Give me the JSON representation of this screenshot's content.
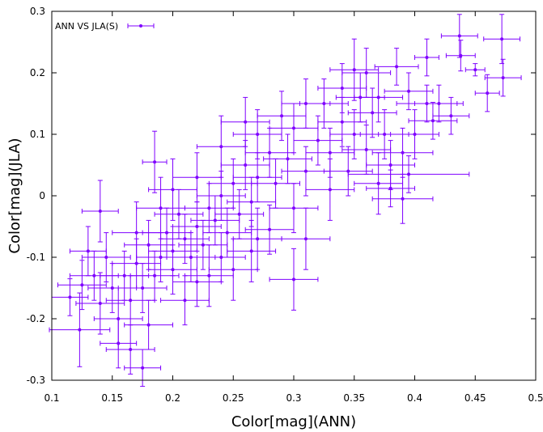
{
  "chart_data": {
    "type": "scatter",
    "xlabel": "Color[mag](ANN)",
    "ylabel": "Color[mag](JLA)",
    "xlim": [
      0.1,
      0.5
    ],
    "ylim": [
      -0.3,
      0.3
    ],
    "xticks": [
      "0.1",
      "0.15",
      "0.2",
      "0.25",
      "0.3",
      "0.35",
      "0.4",
      "0.45",
      "0.5"
    ],
    "yticks": [
      "-0.3",
      "-0.2",
      "-0.1",
      "0",
      "0.1",
      "0.2",
      "0.3"
    ],
    "grid": false,
    "legend_position": "top-left",
    "series": [
      {
        "name": "ANN VS JLA(S)",
        "color": "#7f00ff",
        "marker": "circle",
        "error_bars": "xy",
        "points": [
          {
            "x": 0.437,
            "y": 0.26,
            "xerr": 0.015,
            "yerr": 0.035
          },
          {
            "x": 0.472,
            "y": 0.255,
            "xerr": 0.015,
            "yerr": 0.04
          },
          {
            "x": 0.438,
            "y": 0.228,
            "xerr": 0.012,
            "yerr": 0.025
          },
          {
            "x": 0.45,
            "y": 0.205,
            "xerr": 0.008,
            "yerr": 0.01
          },
          {
            "x": 0.473,
            "y": 0.192,
            "xerr": 0.015,
            "yerr": 0.03
          },
          {
            "x": 0.46,
            "y": 0.167,
            "xerr": 0.01,
            "yerr": 0.03
          },
          {
            "x": 0.41,
            "y": 0.225,
            "xerr": 0.01,
            "yerr": 0.03
          },
          {
            "x": 0.385,
            "y": 0.21,
            "xerr": 0.018,
            "yerr": 0.03
          },
          {
            "x": 0.36,
            "y": 0.2,
            "xerr": 0.02,
            "yerr": 0.04
          },
          {
            "x": 0.35,
            "y": 0.205,
            "xerr": 0.02,
            "yerr": 0.05
          },
          {
            "x": 0.395,
            "y": 0.17,
            "xerr": 0.02,
            "yerr": 0.03
          },
          {
            "x": 0.41,
            "y": 0.15,
            "xerr": 0.025,
            "yerr": 0.03
          },
          {
            "x": 0.415,
            "y": 0.122,
            "xerr": 0.02,
            "yerr": 0.03
          },
          {
            "x": 0.4,
            "y": 0.1,
            "xerr": 0.02,
            "yerr": 0.04
          },
          {
            "x": 0.39,
            "y": 0.07,
            "xerr": 0.025,
            "yerr": 0.04
          },
          {
            "x": 0.38,
            "y": 0.05,
            "xerr": 0.02,
            "yerr": 0.04
          },
          {
            "x": 0.395,
            "y": 0.035,
            "xerr": 0.05,
            "yerr": 0.03
          },
          {
            "x": 0.38,
            "y": 0.012,
            "xerr": 0.02,
            "yerr": 0.03
          },
          {
            "x": 0.39,
            "y": -0.005,
            "xerr": 0.025,
            "yerr": 0.04
          },
          {
            "x": 0.37,
            "y": 0.02,
            "xerr": 0.02,
            "yerr": 0.05
          },
          {
            "x": 0.365,
            "y": 0.135,
            "xerr": 0.02,
            "yerr": 0.04
          },
          {
            "x": 0.355,
            "y": 0.16,
            "xerr": 0.02,
            "yerr": 0.04
          },
          {
            "x": 0.35,
            "y": 0.1,
            "xerr": 0.02,
            "yerr": 0.04
          },
          {
            "x": 0.34,
            "y": 0.12,
            "xerr": 0.02,
            "yerr": 0.04
          },
          {
            "x": 0.33,
            "y": 0.07,
            "xerr": 0.02,
            "yerr": 0.04
          },
          {
            "x": 0.325,
            "y": 0.15,
            "xerr": 0.02,
            "yerr": 0.04
          },
          {
            "x": 0.32,
            "y": 0.09,
            "xerr": 0.02,
            "yerr": 0.04
          },
          {
            "x": 0.31,
            "y": 0.04,
            "xerr": 0.02,
            "yerr": 0.04
          },
          {
            "x": 0.3,
            "y": 0.11,
            "xerr": 0.02,
            "yerr": 0.04
          },
          {
            "x": 0.295,
            "y": 0.06,
            "xerr": 0.02,
            "yerr": 0.04
          },
          {
            "x": 0.3,
            "y": -0.02,
            "xerr": 0.02,
            "yerr": 0.04
          },
          {
            "x": 0.31,
            "y": -0.07,
            "xerr": 0.02,
            "yerr": 0.05
          },
          {
            "x": 0.3,
            "y": -0.136,
            "xerr": 0.02,
            "yerr": 0.05
          },
          {
            "x": 0.28,
            "y": -0.055,
            "xerr": 0.02,
            "yerr": 0.04
          },
          {
            "x": 0.285,
            "y": 0.02,
            "xerr": 0.02,
            "yerr": 0.04
          },
          {
            "x": 0.28,
            "y": 0.07,
            "xerr": 0.02,
            "yerr": 0.04
          },
          {
            "x": 0.27,
            "y": 0.1,
            "xerr": 0.02,
            "yerr": 0.04
          },
          {
            "x": 0.27,
            "y": 0.03,
            "xerr": 0.02,
            "yerr": 0.04
          },
          {
            "x": 0.265,
            "y": -0.01,
            "xerr": 0.02,
            "yerr": 0.04
          },
          {
            "x": 0.26,
            "y": 0.05,
            "xerr": 0.02,
            "yerr": 0.04
          },
          {
            "x": 0.255,
            "y": -0.03,
            "xerr": 0.02,
            "yerr": 0.04
          },
          {
            "x": 0.25,
            "y": 0.02,
            "xerr": 0.02,
            "yerr": 0.04
          },
          {
            "x": 0.245,
            "y": -0.06,
            "xerr": 0.02,
            "yerr": 0.04
          },
          {
            "x": 0.24,
            "y": 0.0,
            "xerr": 0.02,
            "yerr": 0.04
          },
          {
            "x": 0.24,
            "y": 0.08,
            "xerr": 0.02,
            "yerr": 0.05
          },
          {
            "x": 0.235,
            "y": -0.04,
            "xerr": 0.02,
            "yerr": 0.04
          },
          {
            "x": 0.23,
            "y": -0.02,
            "xerr": 0.02,
            "yerr": 0.04
          },
          {
            "x": 0.225,
            "y": -0.08,
            "xerr": 0.02,
            "yerr": 0.04
          },
          {
            "x": 0.22,
            "y": -0.05,
            "xerr": 0.02,
            "yerr": 0.04
          },
          {
            "x": 0.22,
            "y": 0.03,
            "xerr": 0.02,
            "yerr": 0.04
          },
          {
            "x": 0.215,
            "y": -0.1,
            "xerr": 0.02,
            "yerr": 0.04
          },
          {
            "x": 0.21,
            "y": -0.07,
            "xerr": 0.02,
            "yerr": 0.04
          },
          {
            "x": 0.205,
            "y": -0.03,
            "xerr": 0.02,
            "yerr": 0.04
          },
          {
            "x": 0.2,
            "y": -0.09,
            "xerr": 0.02,
            "yerr": 0.04
          },
          {
            "x": 0.2,
            "y": -0.12,
            "xerr": 0.02,
            "yerr": 0.04
          },
          {
            "x": 0.195,
            "y": -0.06,
            "xerr": 0.02,
            "yerr": 0.04
          },
          {
            "x": 0.19,
            "y": -0.1,
            "xerr": 0.02,
            "yerr": 0.04
          },
          {
            "x": 0.185,
            "y": -0.13,
            "xerr": 0.02,
            "yerr": 0.04
          },
          {
            "x": 0.185,
            "y": 0.055,
            "xerr": 0.01,
            "yerr": 0.05
          },
          {
            "x": 0.18,
            "y": -0.08,
            "xerr": 0.02,
            "yerr": 0.04
          },
          {
            "x": 0.175,
            "y": -0.15,
            "xerr": 0.02,
            "yerr": 0.04
          },
          {
            "x": 0.17,
            "y": -0.11,
            "xerr": 0.02,
            "yerr": 0.04
          },
          {
            "x": 0.165,
            "y": -0.17,
            "xerr": 0.02,
            "yerr": 0.04
          },
          {
            "x": 0.16,
            "y": -0.13,
            "xerr": 0.02,
            "yerr": 0.04
          },
          {
            "x": 0.155,
            "y": -0.2,
            "xerr": 0.02,
            "yerr": 0.05
          },
          {
            "x": 0.15,
            "y": -0.15,
            "xerr": 0.02,
            "yerr": 0.04
          },
          {
            "x": 0.145,
            "y": -0.1,
            "xerr": 0.02,
            "yerr": 0.04
          },
          {
            "x": 0.14,
            "y": -0.025,
            "xerr": 0.015,
            "yerr": 0.05
          },
          {
            "x": 0.14,
            "y": -0.175,
            "xerr": 0.02,
            "yerr": 0.05
          },
          {
            "x": 0.135,
            "y": -0.13,
            "xerr": 0.02,
            "yerr": 0.04
          },
          {
            "x": 0.13,
            "y": -0.09,
            "xerr": 0.015,
            "yerr": 0.04
          },
          {
            "x": 0.125,
            "y": -0.145,
            "xerr": 0.02,
            "yerr": 0.04
          },
          {
            "x": 0.123,
            "y": -0.218,
            "xerr": 0.025,
            "yerr": 0.06
          },
          {
            "x": 0.115,
            "y": -0.165,
            "xerr": 0.015,
            "yerr": 0.03
          },
          {
            "x": 0.165,
            "y": -0.25,
            "xerr": 0.02,
            "yerr": 0.04
          },
          {
            "x": 0.155,
            "y": -0.24,
            "xerr": 0.015,
            "yerr": 0.04
          },
          {
            "x": 0.18,
            "y": -0.21,
            "xerr": 0.02,
            "yerr": 0.04
          },
          {
            "x": 0.175,
            "y": -0.28,
            "xerr": 0.015,
            "yerr": 0.03
          },
          {
            "x": 0.21,
            "y": -0.17,
            "xerr": 0.02,
            "yerr": 0.04
          },
          {
            "x": 0.23,
            "y": -0.13,
            "xerr": 0.02,
            "yerr": 0.05
          },
          {
            "x": 0.25,
            "y": -0.12,
            "xerr": 0.02,
            "yerr": 0.05
          },
          {
            "x": 0.265,
            "y": -0.09,
            "xerr": 0.02,
            "yerr": 0.05
          },
          {
            "x": 0.33,
            "y": 0.01,
            "xerr": 0.02,
            "yerr": 0.05
          },
          {
            "x": 0.345,
            "y": 0.04,
            "xerr": 0.02,
            "yerr": 0.04
          },
          {
            "x": 0.36,
            "y": 0.075,
            "xerr": 0.02,
            "yerr": 0.04
          },
          {
            "x": 0.375,
            "y": 0.1,
            "xerr": 0.02,
            "yerr": 0.04
          },
          {
            "x": 0.37,
            "y": 0.16,
            "xerr": 0.02,
            "yerr": 0.04
          },
          {
            "x": 0.34,
            "y": 0.175,
            "xerr": 0.02,
            "yerr": 0.04
          },
          {
            "x": 0.31,
            "y": 0.15,
            "xerr": 0.02,
            "yerr": 0.04
          },
          {
            "x": 0.29,
            "y": 0.13,
            "xerr": 0.02,
            "yerr": 0.04
          },
          {
            "x": 0.26,
            "y": 0.12,
            "xerr": 0.02,
            "yerr": 0.04
          },
          {
            "x": 0.2,
            "y": 0.01,
            "xerr": 0.02,
            "yerr": 0.05
          },
          {
            "x": 0.19,
            "y": -0.02,
            "xerr": 0.02,
            "yerr": 0.05
          },
          {
            "x": 0.17,
            "y": -0.06,
            "xerr": 0.02,
            "yerr": 0.05
          },
          {
            "x": 0.22,
            "y": -0.14,
            "xerr": 0.02,
            "yerr": 0.04
          },
          {
            "x": 0.24,
            "y": -0.1,
            "xerr": 0.02,
            "yerr": 0.04
          },
          {
            "x": 0.27,
            "y": -0.07,
            "xerr": 0.02,
            "yerr": 0.05
          },
          {
            "x": 0.42,
            "y": 0.15,
            "xerr": 0.02,
            "yerr": 0.03
          },
          {
            "x": 0.43,
            "y": 0.13,
            "xerr": 0.015,
            "yerr": 0.03
          }
        ]
      }
    ]
  }
}
